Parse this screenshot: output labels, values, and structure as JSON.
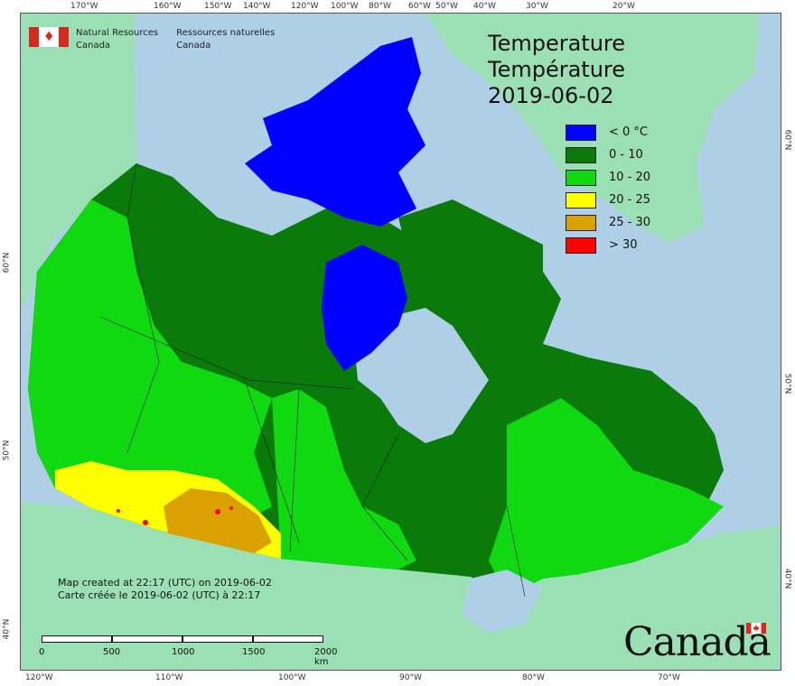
{
  "header": {
    "org_en_1": "Natural Resources",
    "org_en_2": "Canada",
    "org_fr_1": "Ressources naturelles",
    "org_fr_2": "Canada"
  },
  "title": {
    "line1": "Temperature",
    "line2": "Température",
    "date": "2019-06-02"
  },
  "legend": [
    {
      "label": "< 0 °C",
      "color": "#0000ff"
    },
    {
      "label": "0 - 10",
      "color": "#0a7a0a"
    },
    {
      "label": "10 - 20",
      "color": "#11d911"
    },
    {
      "label": "20 - 25",
      "color": "#ffff00"
    },
    {
      "label": "25 - 30",
      "color": "#dba100"
    },
    {
      "label": "> 30",
      "color": "#ff0000"
    }
  ],
  "credits": {
    "line1": "Map created at 22:17 (UTC) on 2019-06-02",
    "line2": "Carte créée le 2019-06-02 (UTC) à 22:17"
  },
  "scale": {
    "labels": [
      "0",
      "500",
      "1000",
      "1500",
      "2000 km"
    ]
  },
  "wordmark": "Canada",
  "colors": {
    "ocean": "#aecfe6",
    "foreign_land": "#9be0b4",
    "canada_outline": "#1a1a1a"
  },
  "graticule": {
    "top": [
      "170°W",
      "160°W",
      "150°W",
      "140°W",
      "120°W",
      "100°W",
      "80°W",
      "60°W",
      "50°W",
      "40°W",
      "30°W",
      "20°W"
    ],
    "bottom": [
      "120°W",
      "110°W",
      "100°W",
      "90°W",
      "80°W",
      "70°W"
    ],
    "left": [
      "60°N",
      "50°N",
      "40°N"
    ],
    "right": [
      "60°N",
      "50°N",
      "40°N"
    ]
  }
}
